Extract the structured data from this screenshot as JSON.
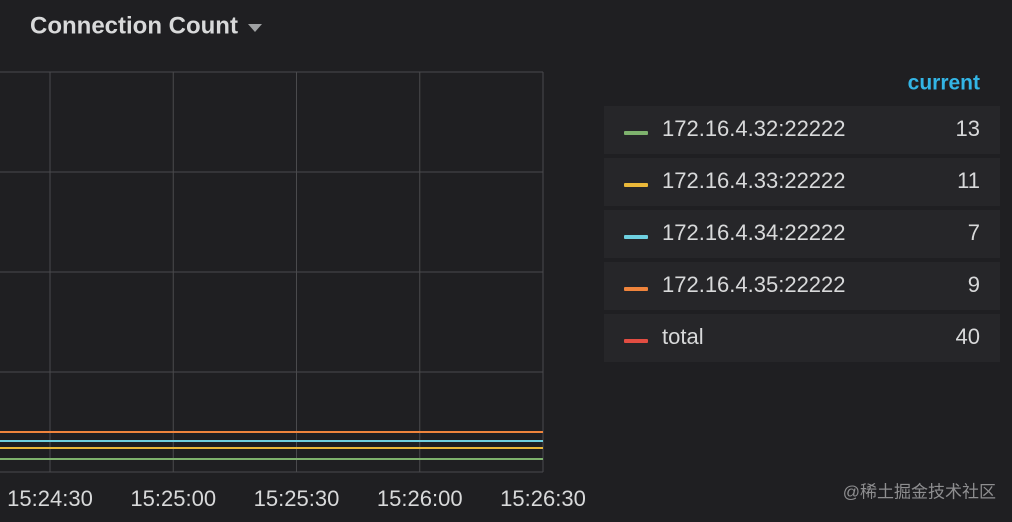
{
  "chart_data": {
    "type": "line",
    "title": "Connection Count",
    "stacked": true,
    "categories": [
      null,
      "15:24:30",
      "15:25:00",
      "15:25:30",
      "15:26:00",
      "15:26:30"
    ],
    "ylim": [
      0,
      400
    ],
    "legend_header": "current",
    "series": [
      {
        "name": "172.16.4.32:22222",
        "color": "#7eb26d",
        "stack": true,
        "values": [
          13,
          13,
          13,
          13,
          13,
          13
        ]
      },
      {
        "name": "172.16.4.33:22222",
        "color": "#eab839",
        "stack": true,
        "values": [
          11,
          11,
          11,
          11,
          11,
          11
        ]
      },
      {
        "name": "172.16.4.34:22222",
        "color": "#6ed0e0",
        "stack": true,
        "values": [
          7,
          7,
          7,
          7,
          7,
          7
        ]
      },
      {
        "name": "172.16.4.35:22222",
        "color": "#ef843c",
        "stack": true,
        "values": [
          9,
          9,
          9,
          9,
          9,
          9
        ]
      },
      {
        "name": "total",
        "color": "#e24d42",
        "stack": false,
        "values": [
          40,
          40,
          40,
          40,
          40,
          40
        ]
      }
    ],
    "watermark": "@稀土掘金技术社区"
  }
}
